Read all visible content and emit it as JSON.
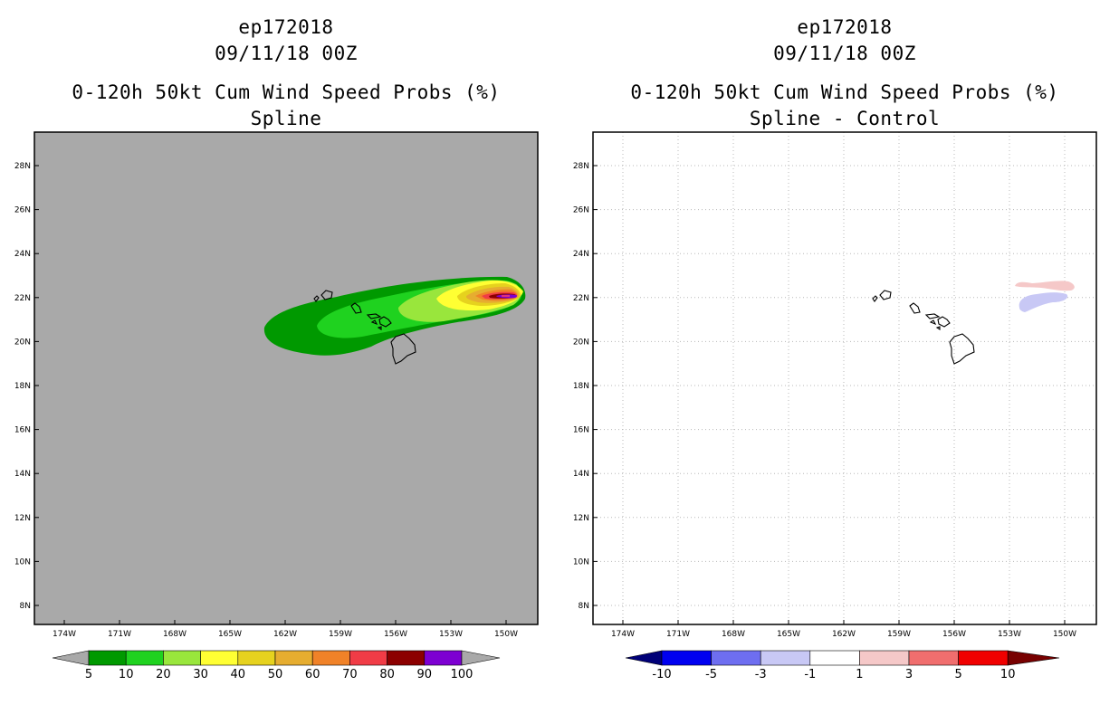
{
  "left": {
    "title_line1": "ep172018",
    "title_line2": "09/11/18 00Z",
    "title_line3": "0-120h 50kt Cum Wind Speed Probs (%)",
    "subtitle": "Spline"
  },
  "right": {
    "title_line1": "ep172018",
    "title_line2": "09/11/18 00Z",
    "title_line3": "0-120h 50kt Cum Wind Speed Probs (%)",
    "subtitle": "Spline - Control"
  },
  "axes": {
    "lat_labels": [
      "28N",
      "26N",
      "24N",
      "22N",
      "20N",
      "18N",
      "16N",
      "14N",
      "12N",
      "10N",
      "8N"
    ],
    "lon_labels": [
      "174W",
      "171W",
      "168W",
      "165W",
      "162W",
      "159W",
      "156W",
      "153W",
      "150W"
    ]
  },
  "colors": {
    "map_background": "#a9a9a9",
    "coast": "#000000"
  },
  "left_colorbar": {
    "labels": [
      "5",
      "10",
      "20",
      "30",
      "40",
      "50",
      "60",
      "70",
      "80",
      "90",
      "100"
    ],
    "colors": [
      "#009900",
      "#1fd21f",
      "#99e63c",
      "#ffff33",
      "#e6d21e",
      "#e6ad30",
      "#f08228",
      "#f03c46",
      "#8c0000",
      "#7d00d2"
    ],
    "end_low_color": "#a9a9a9",
    "end_high_color": "#a9a9a9"
  },
  "right_colorbar": {
    "labels": [
      "-10",
      "-5",
      "-3",
      "-1",
      "1",
      "3",
      "5",
      "10"
    ],
    "colors": [
      "#0000f0",
      "#6e6ef0",
      "#c8c8f5",
      "#ffffff",
      "#f5c8c8",
      "#f06e6e",
      "#f00000"
    ],
    "end_low_color": "#000078",
    "end_high_color": "#780000"
  }
}
